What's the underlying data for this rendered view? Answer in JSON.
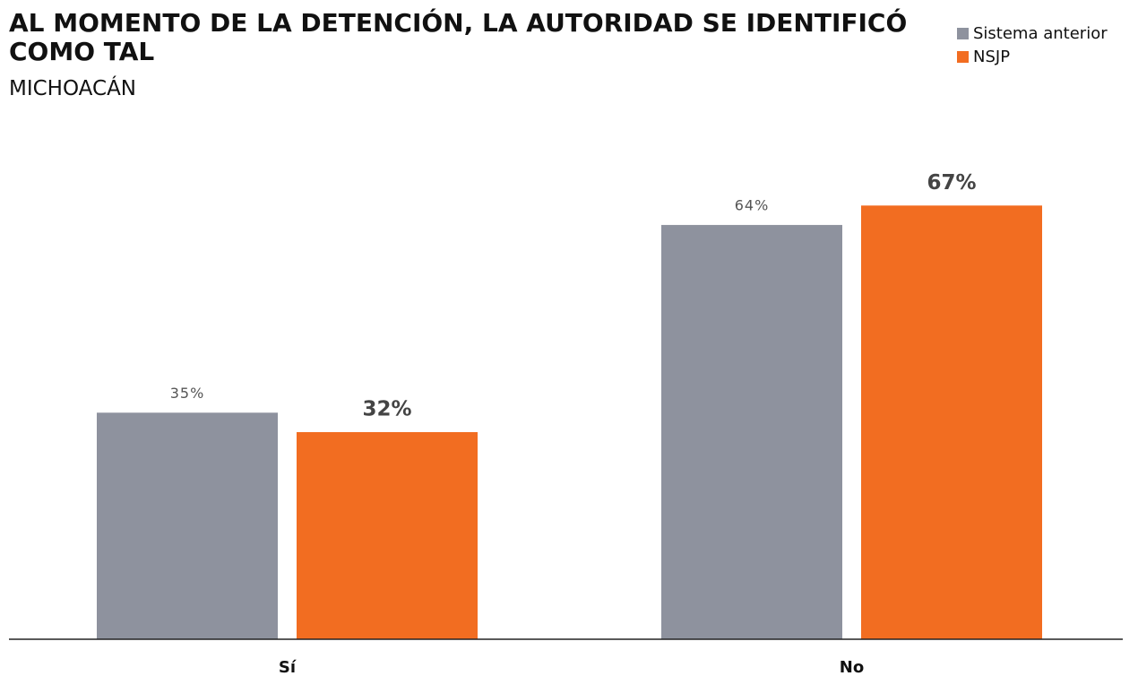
{
  "chart_data": {
    "type": "bar",
    "title": "AL MOMENTO DE LA DETENCIÓN, LA AUTORIDAD SE IDENTIFICÓ COMO TAL",
    "subtitle": "MICHOACÁN",
    "categories": [
      "Sí",
      "No"
    ],
    "series": [
      {
        "name": "Sistema anterior",
        "color": "#8e929e",
        "values": [
          35,
          64
        ],
        "value_labels": [
          "35%",
          "64%"
        ]
      },
      {
        "name": "NSJP",
        "color": "#f26d21",
        "values": [
          32,
          67
        ],
        "value_labels": [
          "32%",
          "67%"
        ]
      }
    ],
    "legend": "top-right"
  }
}
